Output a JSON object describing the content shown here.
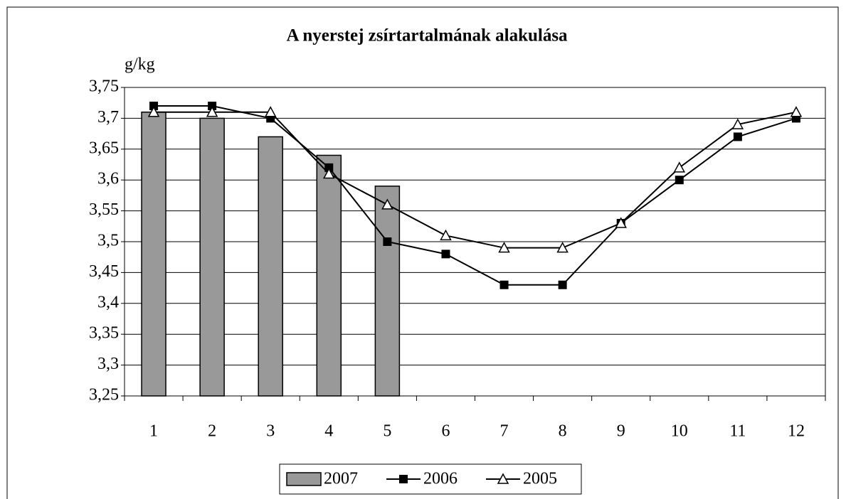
{
  "chart_data": {
    "type": "combo",
    "title": "A nyerstej zsírtartalmának alakulása",
    "y_label": "g/kg",
    "categories": [
      "1",
      "2",
      "3",
      "4",
      "5",
      "6",
      "7",
      "8",
      "9",
      "10",
      "11",
      "12"
    ],
    "series": [
      {
        "name": "2007",
        "type": "bar",
        "color": "#999999",
        "values": [
          3.71,
          3.7,
          3.67,
          3.64,
          3.59,
          null,
          null,
          null,
          null,
          null,
          null,
          null
        ]
      },
      {
        "name": "2006",
        "type": "line",
        "marker": "square",
        "color": "#000000",
        "values": [
          3.72,
          3.72,
          3.7,
          3.62,
          3.5,
          3.48,
          3.43,
          3.43,
          3.53,
          3.6,
          3.67,
          3.7
        ]
      },
      {
        "name": "2005",
        "type": "line",
        "marker": "triangle",
        "color": "#000000",
        "values": [
          3.71,
          3.71,
          3.71,
          3.61,
          3.56,
          3.51,
          3.49,
          3.49,
          3.53,
          3.62,
          3.69,
          3.71
        ]
      }
    ],
    "ylim": [
      3.25,
      3.75
    ],
    "yticks": [
      {
        "value": 3.25,
        "label": "3,25"
      },
      {
        "value": 3.3,
        "label": "3,3"
      },
      {
        "value": 3.35,
        "label": "3,35"
      },
      {
        "value": 3.4,
        "label": "3,4"
      },
      {
        "value": 3.45,
        "label": "3,45"
      },
      {
        "value": 3.5,
        "label": "3,5"
      },
      {
        "value": 3.55,
        "label": "3,55"
      },
      {
        "value": 3.6,
        "label": "3,6"
      },
      {
        "value": 3.65,
        "label": "3,65"
      },
      {
        "value": 3.7,
        "label": "3,7"
      },
      {
        "value": 3.75,
        "label": "3,75"
      }
    ],
    "grid": true,
    "legend": "bottom"
  }
}
